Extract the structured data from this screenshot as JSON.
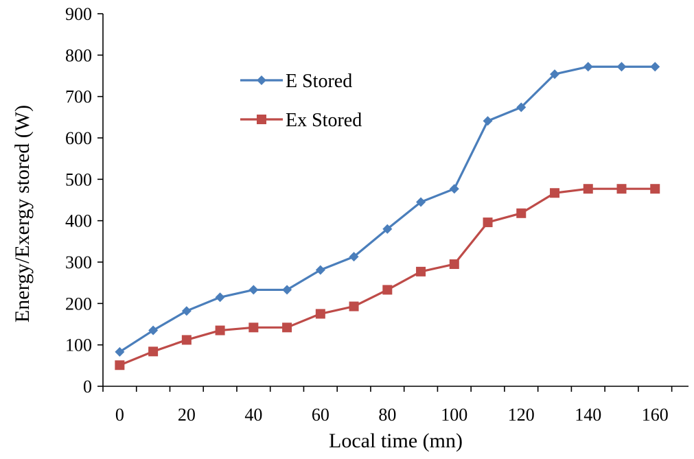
{
  "chart_data": {
    "type": "line",
    "title": "",
    "xlabel": "Local time (mn)",
    "ylabel": "Energy/Exergy stored (W)",
    "xlim": [
      -5,
      170
    ],
    "ylim": [
      0,
      900
    ],
    "xticks": [
      0,
      20,
      40,
      60,
      80,
      100,
      120,
      140,
      160
    ],
    "yticks": [
      0,
      100,
      200,
      300,
      400,
      500,
      600,
      700,
      800,
      900
    ],
    "grid": false,
    "legend_position": "top-left",
    "x": [
      0,
      10,
      20,
      30,
      40,
      50,
      60,
      70,
      80,
      90,
      100,
      110,
      120,
      130,
      140,
      150,
      160
    ],
    "series": [
      {
        "name": "E Stored",
        "color": "#4A7EBB",
        "marker": "diamond",
        "values": [
          83,
          135,
          182,
          215,
          233,
          233,
          281,
          313,
          380,
          445,
          477,
          641,
          674,
          754,
          772,
          772,
          772
        ]
      },
      {
        "name": "Ex Stored",
        "color": "#BE4B48",
        "marker": "square",
        "values": [
          51,
          84,
          112,
          135,
          142,
          142,
          175,
          193,
          233,
          277,
          295,
          396,
          418,
          467,
          477,
          477,
          477
        ]
      }
    ]
  }
}
